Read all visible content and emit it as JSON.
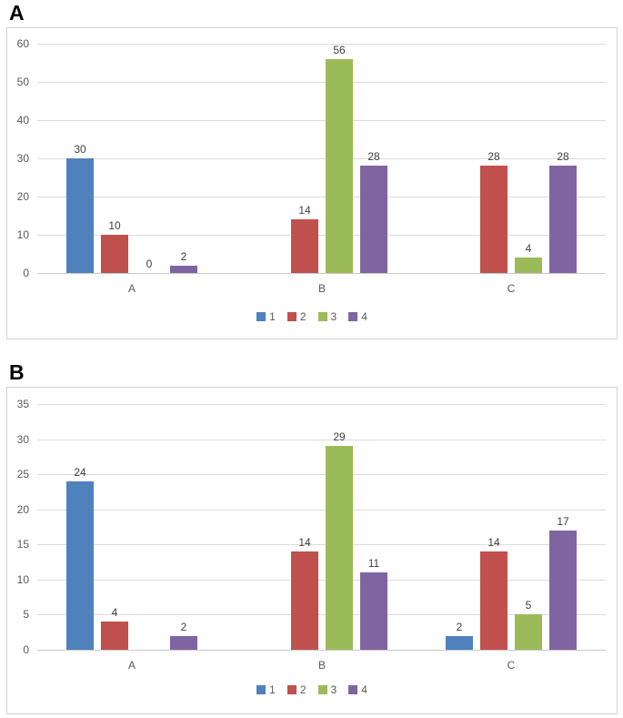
{
  "figure": {
    "panel_labels": [
      "A",
      "B"
    ]
  },
  "colors": {
    "series_1": "#4F81BD",
    "series_2": "#C0504D",
    "series_3": "#9BBB59",
    "series_4": "#8064A2",
    "gridline": "#DCDCDC",
    "axis_text": "#595959",
    "value_label_text": "#3F3F3F",
    "panel_border": "#D3D3D3"
  },
  "chart_data": [
    {
      "type": "bar",
      "title": "A",
      "categories": [
        "A",
        "B",
        "C"
      ],
      "series": [
        {
          "name": "1",
          "color": "#4F81BD",
          "values": [
            30,
            null,
            null
          ]
        },
        {
          "name": "2",
          "color": "#C0504D",
          "values": [
            10,
            14,
            28
          ]
        },
        {
          "name": "3",
          "color": "#9BBB59",
          "values": [
            0,
            56,
            4
          ]
        },
        {
          "name": "4",
          "color": "#8064A2",
          "values": [
            2,
            28,
            28
          ]
        }
      ],
      "xlabel": "",
      "ylabel": "",
      "ylim": [
        0,
        60
      ],
      "yticks": [
        0,
        10,
        20,
        30,
        40,
        50,
        60
      ],
      "grid": true,
      "data_labels": true,
      "legend_position": "bottom",
      "legend_entries": [
        "1",
        "2",
        "3",
        "4"
      ]
    },
    {
      "type": "bar",
      "title": "B",
      "categories": [
        "A",
        "B",
        "C"
      ],
      "series": [
        {
          "name": "1",
          "color": "#4F81BD",
          "values": [
            24,
            null,
            2
          ]
        },
        {
          "name": "2",
          "color": "#C0504D",
          "values": [
            4,
            14,
            14
          ]
        },
        {
          "name": "3",
          "color": "#9BBB59",
          "values": [
            null,
            29,
            5
          ]
        },
        {
          "name": "4",
          "color": "#8064A2",
          "values": [
            2,
            11,
            17
          ]
        }
      ],
      "xlabel": "",
      "ylabel": "",
      "ylim": [
        0,
        35
      ],
      "yticks": [
        0,
        5,
        10,
        15,
        20,
        25,
        30,
        35
      ],
      "grid": true,
      "data_labels": true,
      "legend_position": "bottom",
      "legend_entries": [
        "1",
        "2",
        "3",
        "4"
      ]
    }
  ]
}
